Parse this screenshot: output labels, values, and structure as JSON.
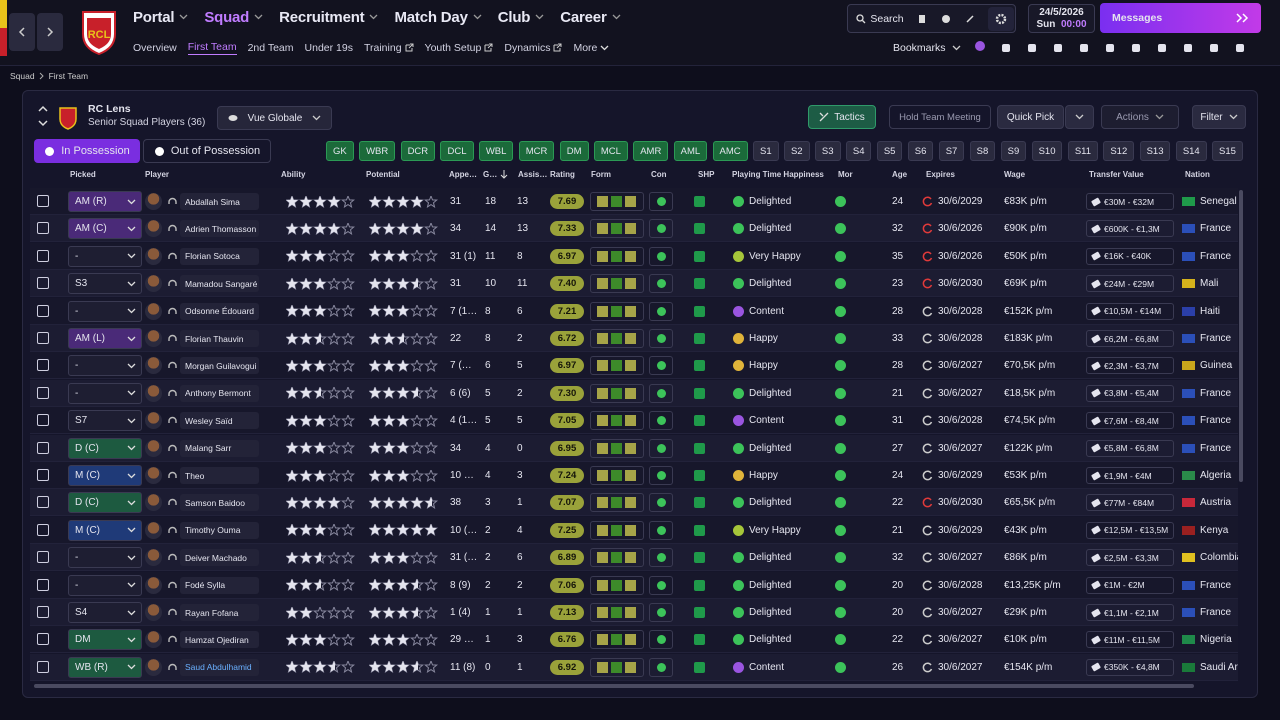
{
  "nav": {
    "crest": "RCL",
    "menu": [
      "Portal",
      "Squad",
      "Recruitment",
      "Match Day",
      "Club",
      "Career"
    ],
    "submenu": [
      "Overview",
      "First Team",
      "2nd Team",
      "Under 19s",
      "Training",
      "Youth Setup",
      "Dynamics",
      "More"
    ],
    "search": "Search",
    "date": "24/5/2026",
    "day": "Sun",
    "time": "00:00",
    "messages": "Messages",
    "bookmarks": "Bookmarks"
  },
  "breadcrumb": [
    "Squad",
    "First Team"
  ],
  "team": {
    "name": "RC Lens",
    "subtitle": "Senior Squad Players (36)",
    "view": "Vue Globale"
  },
  "buttons": {
    "tactics": "Tactics",
    "meeting": "Hold Team Meeting",
    "quick_pick": "Quick Pick",
    "actions": "Actions",
    "filter": "Filter"
  },
  "tabs": [
    "In Possession",
    "Out of Possession"
  ],
  "positions": [
    "GK",
    "WBR",
    "DCR",
    "DCL",
    "WBL",
    "MCR",
    "DM",
    "MCL",
    "AMR",
    "AML",
    "AMC",
    "S1",
    "S2",
    "S3",
    "S4",
    "S5",
    "S6",
    "S7",
    "S8",
    "S9",
    "S10",
    "S11",
    "S12",
    "S13",
    "S14",
    "S15"
  ],
  "table": {
    "columns": [
      "Picked",
      "Player",
      "Ability",
      "Potential",
      "Appe…",
      "G…",
      "Assis…",
      "Rating",
      "Form",
      "Con",
      "SHP",
      "Playing Time Happiness",
      "Mor",
      "Age",
      "Expires",
      "Wage",
      "Transfer Value",
      "Nation"
    ],
    "rows": [
      {
        "picked": "AM (R)",
        "picked_color": "#4a2a78",
        "name": "Abdallah Sima",
        "ability": 4,
        "potential": 4,
        "apps": "31",
        "goals": 18,
        "assists": 13,
        "rating": "7.69",
        "happiness": "Delighted",
        "happiness_color": "#3cc35a",
        "age": 24,
        "expires": "30/6/2029",
        "expires_alert": true,
        "wage": "€83K p/m",
        "value": "€30M - €32M",
        "nation": "Senegal",
        "flag": "#1f9a4a"
      },
      {
        "picked": "AM (C)",
        "picked_color": "#4a2a78",
        "name": "Adrien Thomasson",
        "ability": 4,
        "potential": 4,
        "apps": "34",
        "goals": 14,
        "assists": 13,
        "rating": "7.33",
        "happiness": "Delighted",
        "happiness_color": "#3cc35a",
        "age": 32,
        "expires": "30/6/2026",
        "expires_alert": true,
        "wage": "€90K p/m",
        "value": "€600K - €1,3M",
        "nation": "France",
        "flag": "#2b4fb8"
      },
      {
        "picked": "-",
        "name": "Florian Sotoca",
        "ability": 3,
        "potential": 3,
        "apps": "31 (1)",
        "goals": 11,
        "assists": 8,
        "rating": "6.97",
        "happiness": "Very Happy",
        "happiness_color": "#a6c63a",
        "age": 35,
        "expires": "30/6/2026",
        "expires_alert": true,
        "wage": "€50K p/m",
        "value": "€16K - €40K",
        "nation": "France",
        "flag": "#2b4fb8"
      },
      {
        "picked": "S3",
        "name": "Mamadou Sangaré",
        "ability": 3,
        "potential": 3.5,
        "apps": "31",
        "goals": 10,
        "assists": 11,
        "rating": "7.40",
        "happiness": "Delighted",
        "happiness_color": "#3cc35a",
        "age": 23,
        "expires": "30/6/2030",
        "expires_alert": true,
        "wage": "€69K p/m",
        "value": "€24M - €29M",
        "nation": "Mali",
        "flag": "#d4b21c"
      },
      {
        "picked": "-",
        "name": "Odsonne Édouard",
        "ability": 3,
        "potential": 3,
        "apps": "7 (1…",
        "goals": 8,
        "assists": 6,
        "rating": "7.21",
        "happiness": "Content",
        "happiness_color": "#9a55e0",
        "age": 28,
        "expires": "30/6/2028",
        "wage": "€152K p/m",
        "value": "€10,5M - €14M",
        "nation": "Haiti",
        "flag": "#2b3fa8"
      },
      {
        "picked": "AM (L)",
        "picked_color": "#4a2a78",
        "name": "Florian Thauvin",
        "ability": 2.5,
        "potential": 2.5,
        "apps": "22",
        "goals": 8,
        "assists": 2,
        "rating": "6.72",
        "happiness": "Happy",
        "happiness_color": "#e0b43a",
        "age": 33,
        "expires": "30/6/2028",
        "wage": "€183K p/m",
        "value": "€6,2M - €6,8M",
        "nation": "France",
        "flag": "#2b4fb8"
      },
      {
        "picked": "-",
        "name": "Morgan Guilavogui",
        "ability": 3,
        "potential": 3,
        "apps": "7 (…",
        "goals": 6,
        "assists": 5,
        "rating": "6.97",
        "happiness": "Happy",
        "happiness_color": "#e0b43a",
        "age": 28,
        "expires": "30/6/2027",
        "wage": "€70,5K p/m",
        "value": "€2,3M - €3,7M",
        "nation": "Guinea",
        "flag": "#c8a61c"
      },
      {
        "picked": "-",
        "name": "Anthony Bermont",
        "ability": 2.5,
        "potential": 3.5,
        "apps": "6 (6)",
        "goals": 5,
        "assists": 2,
        "rating": "7.30",
        "happiness": "Delighted",
        "happiness_color": "#3cc35a",
        "age": 21,
        "expires": "30/6/2027",
        "wage": "€18,5K p/m",
        "value": "€3,8M - €5,4M",
        "nation": "France",
        "flag": "#2b4fb8"
      },
      {
        "picked": "S7",
        "name": "Wesley Saïd",
        "ability": 3,
        "potential": 3,
        "apps": "4 (1…",
        "goals": 5,
        "assists": 5,
        "rating": "7.05",
        "happiness": "Content",
        "happiness_color": "#9a55e0",
        "age": 31,
        "expires": "30/6/2028",
        "wage": "€74,5K p/m",
        "value": "€7,6M - €8,4M",
        "nation": "France",
        "flag": "#2b4fb8"
      },
      {
        "picked": "D (C)",
        "picked_color": "#1d5a40",
        "name": "Malang Sarr",
        "ability": 3,
        "potential": 3,
        "apps": "34",
        "goals": 4,
        "assists": 0,
        "rating": "6.95",
        "happiness": "Delighted",
        "happiness_color": "#3cc35a",
        "age": 27,
        "expires": "30/6/2027",
        "wage": "€122K p/m",
        "value": "€5,8M - €6,8M",
        "nation": "France",
        "flag": "#2b4fb8"
      },
      {
        "picked": "M (C)",
        "picked_color": "#1f3a78",
        "name": "Theo",
        "ability": 3,
        "potential": 3,
        "apps": "10 …",
        "goals": 4,
        "assists": 3,
        "rating": "7.24",
        "happiness": "Happy",
        "happiness_color": "#e0b43a",
        "age": 24,
        "expires": "30/6/2029",
        "wage": "€53K p/m",
        "value": "€1,9M - €4M",
        "nation": "Algeria",
        "flag": "#2a8a4a"
      },
      {
        "picked": "D (C)",
        "picked_color": "#1d5a40",
        "name": "Samson Baidoo",
        "ability": 4,
        "potential": 4.5,
        "apps": "38",
        "goals": 3,
        "assists": 1,
        "rating": "7.07",
        "happiness": "Delighted",
        "happiness_color": "#3cc35a",
        "age": 22,
        "expires": "30/6/2030",
        "expires_alert": true,
        "wage": "€65,5K p/m",
        "value": "€77M - €84M",
        "nation": "Austria",
        "flag": "#c8283a"
      },
      {
        "picked": "M (C)",
        "picked_color": "#1f3a78",
        "name": "Timothy Ouma",
        "ability": 3,
        "potential": 5,
        "apps": "10 (…",
        "goals": 2,
        "assists": 4,
        "rating": "7.25",
        "happiness": "Very Happy",
        "happiness_color": "#a6c63a",
        "age": 21,
        "expires": "30/6/2029",
        "wage": "€43K p/m",
        "value": "€12,5M - €13,5M",
        "nation": "Kenya",
        "flag": "#9a2020"
      },
      {
        "picked": "-",
        "name": "Deiver Machado",
        "ability": 2.5,
        "potential": 3,
        "apps": "31 (…",
        "goals": 2,
        "assists": 6,
        "rating": "6.89",
        "happiness": "Delighted",
        "happiness_color": "#3cc35a",
        "age": 32,
        "expires": "30/6/2027",
        "wage": "€86K p/m",
        "value": "€2,5M - €3,3M",
        "nation": "Colombia",
        "flag": "#e0c020"
      },
      {
        "picked": "-",
        "name": "Fodé Sylla",
        "ability": 2.5,
        "potential": 3.5,
        "apps": "8 (9)",
        "goals": 2,
        "assists": 2,
        "rating": "7.06",
        "happiness": "Delighted",
        "happiness_color": "#3cc35a",
        "age": 20,
        "expires": "30/6/2028",
        "wage": "€13,25K p/m",
        "value": "€1M - €2M",
        "nation": "France",
        "flag": "#2b4fb8"
      },
      {
        "picked": "S4",
        "name": "Rayan Fofana",
        "ability": 2,
        "potential": 3.5,
        "apps": "1 (4)",
        "goals": 1,
        "assists": 1,
        "rating": "7.13",
        "happiness": "Delighted",
        "happiness_color": "#3cc35a",
        "age": 20,
        "expires": "30/6/2027",
        "wage": "€29K p/m",
        "value": "€1,1M - €2,1M",
        "nation": "France",
        "flag": "#2b4fb8"
      },
      {
        "picked": "DM",
        "picked_color": "#1d5a40",
        "name": "Hamzat Ojediran",
        "ability": 3,
        "potential": 3,
        "apps": "29 …",
        "goals": 1,
        "assists": 3,
        "rating": "6.76",
        "happiness": "Delighted",
        "happiness_color": "#3cc35a",
        "age": 22,
        "expires": "30/6/2027",
        "wage": "€10K p/m",
        "value": "€11M - €11,5M",
        "nation": "Nigeria",
        "flag": "#1f8a4a"
      },
      {
        "picked": "WB (R)",
        "picked_color": "#1d5a40",
        "name": "Saud Abdulhamid",
        "ability": 3.5,
        "potential": 3.5,
        "apps": "11 (8)",
        "goals": 0,
        "assists": 1,
        "rating": "6.92",
        "happiness": "Content",
        "happiness_color": "#9a55e0",
        "age": 26,
        "expires": "30/6/2027",
        "wage": "€154K p/m",
        "value": "€350K - €4,8M",
        "nation": "Saudi Arabia",
        "flag": "#1a7a3a"
      }
    ]
  }
}
